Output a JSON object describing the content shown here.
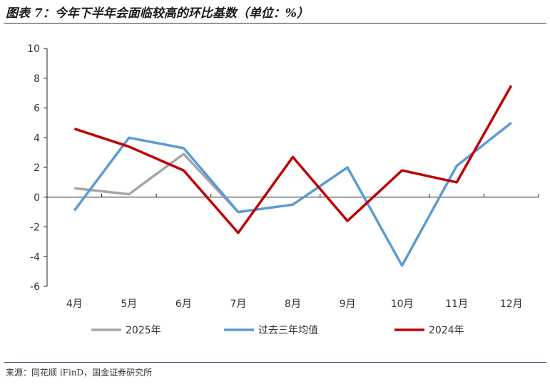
{
  "header": {
    "title": "图表 7：今年下半年会面临较高的环比基数（单位：%）"
  },
  "footer": {
    "source": "来源：同花顺 iFinD，国金证券研究所"
  },
  "chart_data": {
    "type": "line",
    "categories": [
      "4月",
      "5月",
      "6月",
      "7月",
      "8月",
      "9月",
      "10月",
      "11月",
      "12月"
    ],
    "ylim": [
      -6,
      10
    ],
    "yticks": [
      -6,
      -4,
      -2,
      0,
      2,
      4,
      6,
      8,
      10
    ],
    "grid": false,
    "legend_position": "bottom",
    "series": [
      {
        "name": "2025年",
        "color": "#a6a6a6",
        "values": [
          0.6,
          0.2,
          2.9,
          -1.0,
          null,
          null,
          null,
          null,
          null
        ]
      },
      {
        "name": "过去三年均值",
        "color": "#5b9bd5",
        "values": [
          -0.9,
          4.0,
          3.3,
          -1.0,
          -0.5,
          2.0,
          -4.6,
          2.1,
          5.0
        ]
      },
      {
        "name": "2024年",
        "color": "#c00000",
        "values": [
          4.6,
          3.4,
          1.8,
          -2.4,
          2.7,
          -1.6,
          1.8,
          1.0,
          7.5
        ]
      }
    ]
  }
}
